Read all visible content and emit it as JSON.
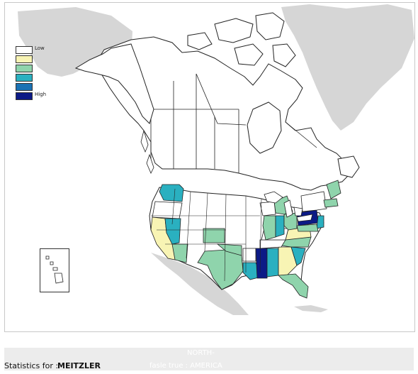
{
  "legend": {
    "items": [
      {
        "label": "Low",
        "color": "#ffffff"
      },
      {
        "label": "",
        "color": "#f8f4b4"
      },
      {
        "label": "",
        "color": "#8fd4ac"
      },
      {
        "label": "",
        "color": "#2ab0c0"
      },
      {
        "label": "",
        "color": "#1a72b4"
      },
      {
        "label": "High",
        "color": "#0c1a86"
      }
    ]
  },
  "footer": {
    "statistics_label": "Statistics for :",
    "surname": "MEITZLER",
    "overlay_region_text": "NORTH-",
    "overlay_flag_text": "fasle true : AMERICA"
  },
  "colors": {
    "land": "#ffffff",
    "neighbor_land": "#d6d6d6",
    "border": "#222222",
    "frame": "#c8c8c8",
    "footer_bg": "#ececec"
  },
  "regions": [
    {
      "name": "Washington",
      "level": 3
    },
    {
      "name": "Oregon",
      "level": 0
    },
    {
      "name": "California",
      "level": 1
    },
    {
      "name": "Nevada",
      "level": 3
    },
    {
      "name": "Arizona",
      "level": 2
    },
    {
      "name": "Colorado",
      "level": 2
    },
    {
      "name": "Texas",
      "level": 2
    },
    {
      "name": "Oklahoma",
      "level": 2
    },
    {
      "name": "Arkansas",
      "level": 0
    },
    {
      "name": "Louisiana",
      "level": 3
    },
    {
      "name": "Mississippi",
      "level": 5
    },
    {
      "name": "Alabama",
      "level": 3
    },
    {
      "name": "Georgia",
      "level": 1
    },
    {
      "name": "South Carolina",
      "level": 3
    },
    {
      "name": "North Carolina",
      "level": 2
    },
    {
      "name": "Virginia",
      "level": 1
    },
    {
      "name": "Tennessee",
      "level": 0
    },
    {
      "name": "Kentucky",
      "level": 0
    },
    {
      "name": "Florida",
      "level": 2
    },
    {
      "name": "Illinois",
      "level": 2
    },
    {
      "name": "Indiana",
      "level": 3
    },
    {
      "name": "Ohio",
      "level": 2
    },
    {
      "name": "Michigan",
      "level": 2
    },
    {
      "name": "Wisconsin",
      "level": 0
    },
    {
      "name": "Pennsylvania",
      "level": 5
    },
    {
      "name": "New York",
      "level": 0
    },
    {
      "name": "New Jersey",
      "level": 3
    },
    {
      "name": "Maryland",
      "level": 2
    },
    {
      "name": "Maine",
      "level": 2
    },
    {
      "name": "Massachusetts",
      "level": 2
    }
  ]
}
